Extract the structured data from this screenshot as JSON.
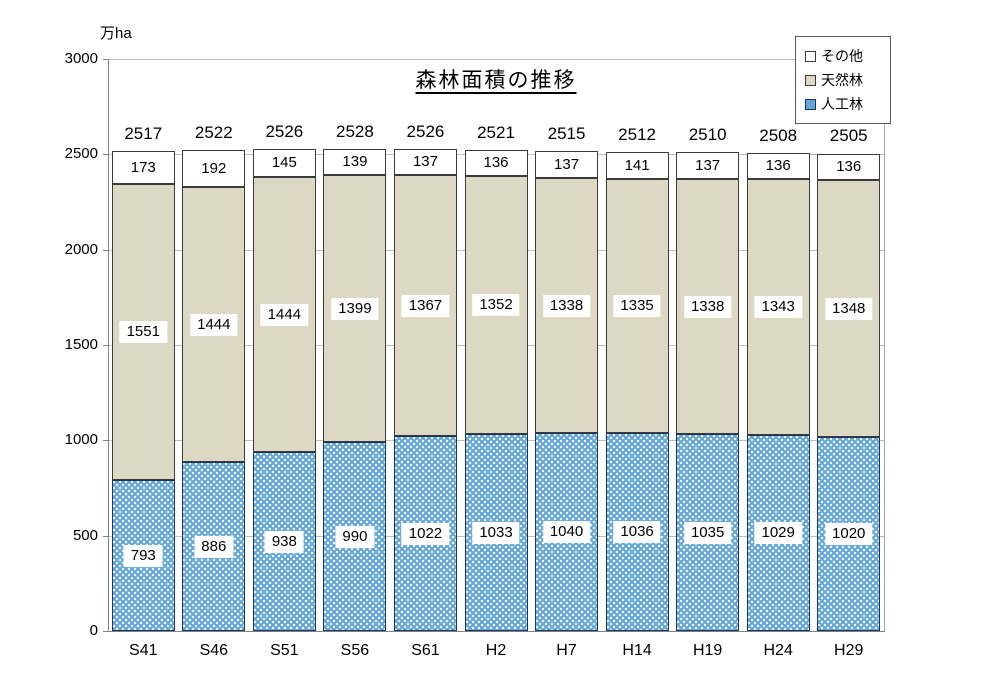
{
  "title": "森林面積の推移",
  "unit_label": "万ha",
  "chart_data": {
    "type": "bar",
    "stacked": true,
    "title": "森林面積の推移",
    "ylabel": "万ha",
    "xlabel": "",
    "categories": [
      "S41",
      "S46",
      "S51",
      "S56",
      "S61",
      "H2",
      "H7",
      "H14",
      "H19",
      "H24",
      "H29"
    ],
    "series": [
      {
        "name": "人工林",
        "key": "planted-forest",
        "color": "#64a5da",
        "pattern": "white-dots",
        "border": "#17375e",
        "values": [
          793,
          886,
          938,
          990,
          1022,
          1033,
          1040,
          1036,
          1035,
          1029,
          1020
        ]
      },
      {
        "name": "天然林",
        "key": "natural-forest",
        "color": "#dcd8c4",
        "pattern": "solid",
        "border": "#3b3b3b",
        "values": [
          1551,
          1444,
          1444,
          1399,
          1367,
          1352,
          1338,
          1335,
          1338,
          1343,
          1348
        ]
      },
      {
        "name": "その他",
        "key": "other",
        "color": "#ffffff",
        "pattern": "solid",
        "border": "#3b3b3b",
        "values": [
          173,
          192,
          145,
          139,
          137,
          136,
          137,
          141,
          137,
          136,
          136
        ]
      }
    ],
    "totals": [
      2517,
      2522,
      2526,
      2528,
      2526,
      2521,
      2515,
      2512,
      2510,
      2508,
      2505
    ],
    "legend": [
      "その他",
      "天然林",
      "人工林"
    ],
    "legend_position": "top-right",
    "ylim": [
      0,
      3000
    ],
    "ytick_step": 500,
    "grid": true
  },
  "colors": {
    "gridline": "#bdbdbd",
    "axis": "#808080",
    "label_text": "#000000"
  }
}
